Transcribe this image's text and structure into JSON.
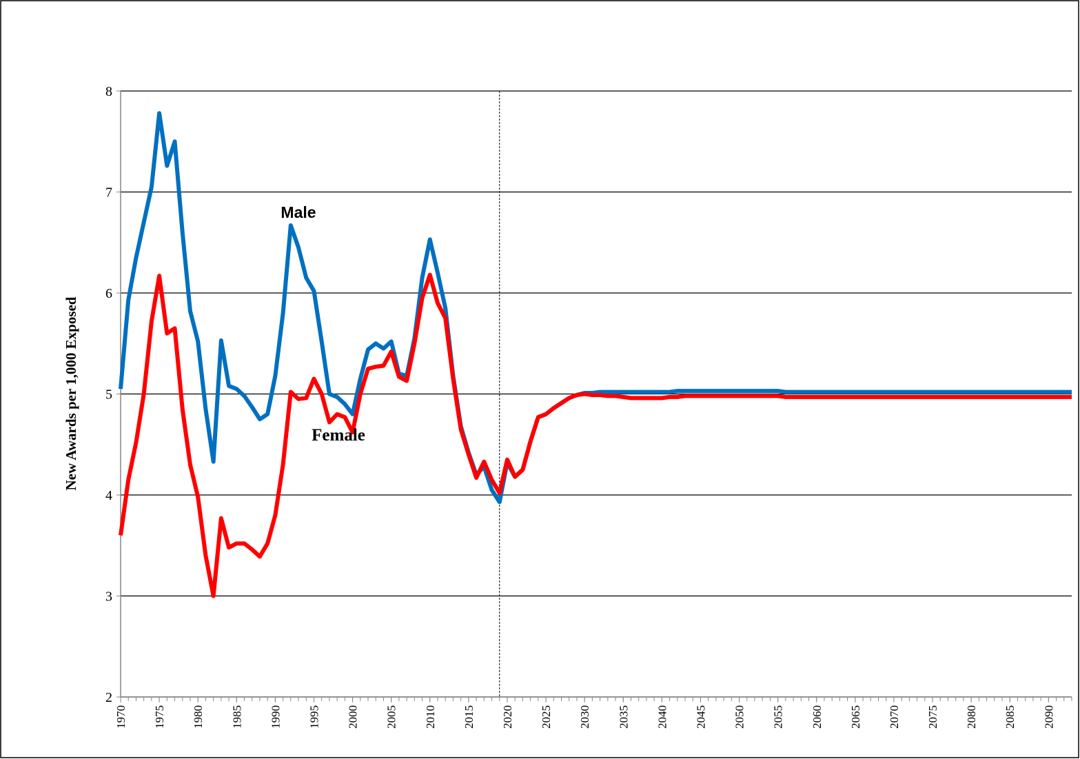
{
  "chart_data": {
    "type": "line",
    "y_label": "New Awards per 1,000 Exposed",
    "x": [
      1970,
      1971,
      1972,
      1973,
      1974,
      1975,
      1976,
      1977,
      1978,
      1979,
      1980,
      1981,
      1982,
      1983,
      1984,
      1985,
      1986,
      1987,
      1988,
      1989,
      1990,
      1991,
      1992,
      1993,
      1994,
      1995,
      1996,
      1997,
      1998,
      1999,
      2000,
      2001,
      2002,
      2003,
      2004,
      2005,
      2006,
      2007,
      2008,
      2009,
      2010,
      2011,
      2012,
      2013,
      2014,
      2015,
      2016,
      2017,
      2018,
      2019,
      2020,
      2021,
      2022,
      2023,
      2024,
      2025,
      2026,
      2027,
      2028,
      2029,
      2030,
      2031,
      2032,
      2033,
      2034,
      2035,
      2036,
      2037,
      2038,
      2039,
      2040,
      2041,
      2042,
      2043,
      2044,
      2045,
      2046,
      2047,
      2048,
      2049,
      2050,
      2051,
      2052,
      2053,
      2054,
      2055,
      2056,
      2057,
      2058,
      2059,
      2060,
      2061,
      2062,
      2063,
      2064,
      2065,
      2066,
      2067,
      2068,
      2069,
      2070,
      2071,
      2072,
      2073,
      2074,
      2075,
      2076,
      2077,
      2078,
      2079,
      2080,
      2081,
      2082,
      2083,
      2084,
      2085,
      2086,
      2087,
      2088,
      2089,
      2090,
      2091,
      2092,
      2093
    ],
    "series": [
      {
        "name": "Male",
        "color": "#0070c0",
        "values": [
          5.05,
          5.93,
          6.35,
          6.7,
          7.05,
          7.78,
          7.26,
          7.5,
          6.6,
          5.82,
          5.52,
          4.85,
          4.33,
          5.53,
          5.08,
          5.05,
          4.98,
          4.87,
          4.75,
          4.8,
          5.18,
          5.8,
          6.67,
          6.45,
          6.15,
          6.02,
          5.52,
          5.0,
          4.97,
          4.9,
          4.8,
          5.15,
          5.44,
          5.5,
          5.45,
          5.52,
          5.2,
          5.18,
          5.55,
          6.15,
          6.53,
          6.2,
          5.85,
          5.18,
          4.68,
          4.42,
          4.2,
          4.28,
          4.05,
          3.93,
          4.32,
          4.18,
          4.25,
          4.53,
          4.77,
          4.8,
          4.86,
          4.91,
          4.96,
          4.99,
          5.01,
          5.01,
          5.02,
          5.02,
          5.02,
          5.02,
          5.02,
          5.02,
          5.02,
          5.02,
          5.02,
          5.02,
          5.03,
          5.03,
          5.03,
          5.03,
          5.03,
          5.03,
          5.03,
          5.03,
          5.03,
          5.03,
          5.03,
          5.03,
          5.03,
          5.03,
          5.02,
          5.02,
          5.02,
          5.02,
          5.02,
          5.02,
          5.02,
          5.02,
          5.02,
          5.02,
          5.02,
          5.02,
          5.02,
          5.02,
          5.02,
          5.02,
          5.02,
          5.02,
          5.02,
          5.02,
          5.02,
          5.02,
          5.02,
          5.02,
          5.02,
          5.02,
          5.02,
          5.02,
          5.02,
          5.02,
          5.02,
          5.02,
          5.02,
          5.02,
          5.02,
          5.02,
          5.02,
          5.02
        ]
      },
      {
        "name": "Female",
        "color": "#ff0000",
        "values": [
          3.6,
          4.15,
          4.52,
          5.0,
          5.72,
          6.17,
          5.6,
          5.65,
          4.85,
          4.3,
          3.98,
          3.4,
          3.0,
          3.77,
          3.48,
          3.52,
          3.52,
          3.46,
          3.39,
          3.52,
          3.8,
          4.3,
          5.02,
          4.95,
          4.96,
          5.15,
          5.0,
          4.72,
          4.8,
          4.77,
          4.62,
          5.0,
          5.25,
          5.27,
          5.28,
          5.42,
          5.17,
          5.13,
          5.5,
          5.95,
          6.18,
          5.9,
          5.75,
          5.15,
          4.65,
          4.4,
          4.17,
          4.33,
          4.15,
          4.02,
          4.35,
          4.18,
          4.25,
          4.53,
          4.77,
          4.8,
          4.86,
          4.91,
          4.96,
          4.99,
          5.0,
          4.99,
          4.99,
          4.98,
          4.98,
          4.97,
          4.96,
          4.96,
          4.96,
          4.96,
          4.96,
          4.97,
          4.97,
          4.98,
          4.98,
          4.98,
          4.98,
          4.98,
          4.98,
          4.98,
          4.98,
          4.98,
          4.98,
          4.98,
          4.98,
          4.98,
          4.97,
          4.97,
          4.97,
          4.97,
          4.97,
          4.97,
          4.97,
          4.97,
          4.97,
          4.97,
          4.97,
          4.97,
          4.97,
          4.97,
          4.97,
          4.97,
          4.97,
          4.97,
          4.97,
          4.97,
          4.97,
          4.97,
          4.97,
          4.97,
          4.97,
          4.97,
          4.97,
          4.97,
          4.97,
          4.97,
          4.97,
          4.97,
          4.97,
          4.97,
          4.97,
          4.97,
          4.97,
          4.97
        ]
      }
    ],
    "xlim": [
      1970,
      2093
    ],
    "xticks": [
      1970,
      1975,
      1980,
      1985,
      1990,
      1995,
      2000,
      2005,
      2010,
      2015,
      2020,
      2025,
      2030,
      2035,
      2040,
      2045,
      2050,
      2055,
      2060,
      2065,
      2070,
      2075,
      2080,
      2085,
      2090
    ],
    "ylim": [
      2,
      8
    ],
    "yticks": [
      2,
      3,
      4,
      5,
      6,
      7,
      8
    ],
    "grid": true,
    "vline_x": 2019
  }
}
